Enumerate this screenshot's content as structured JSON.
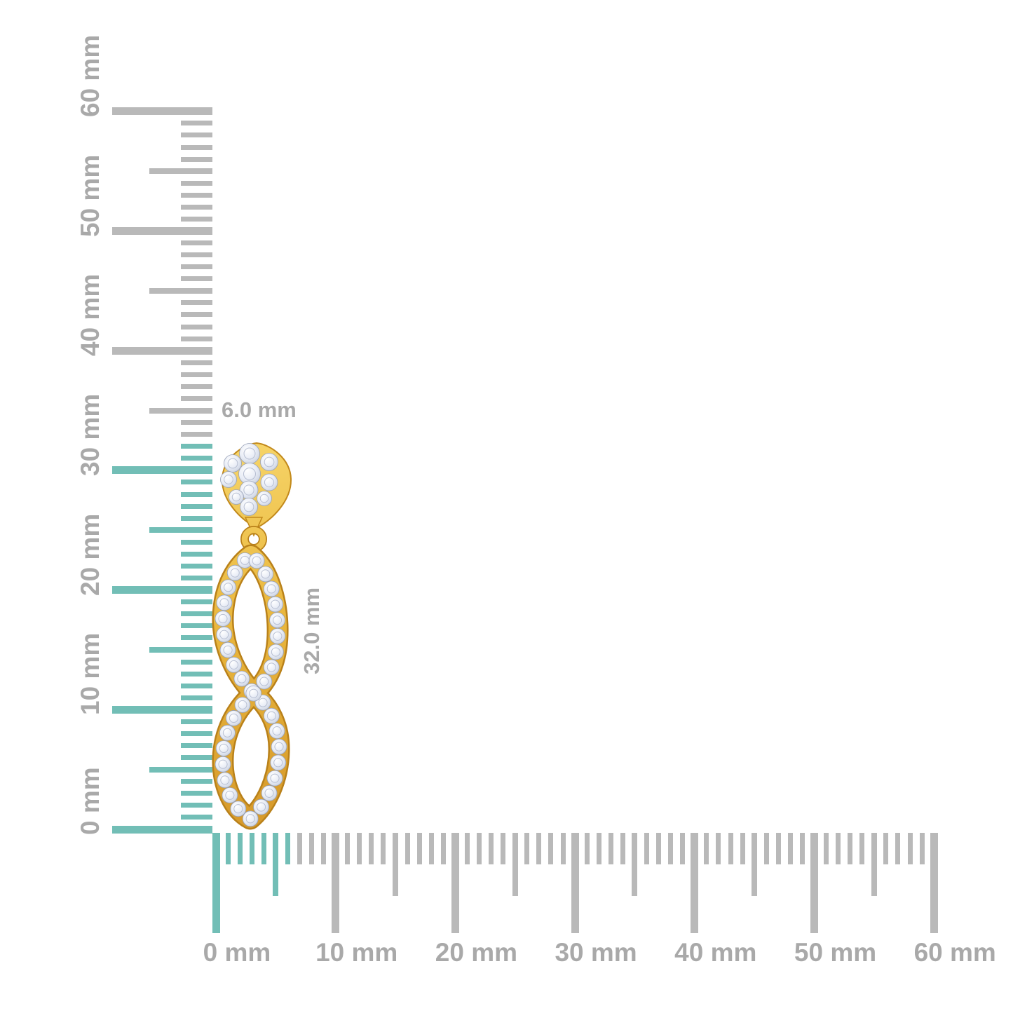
{
  "canvas": {
    "background": "#ffffff"
  },
  "rulers": {
    "unit": "mm",
    "vertical": {
      "min_mm": 0,
      "max_mm": 60,
      "tick_step_mm": 1,
      "medium_step_mm": 5,
      "major_step_mm": 10,
      "highlight_to_mm": 32,
      "labels": [
        {
          "mm": 0,
          "text": "0 mm"
        },
        {
          "mm": 10,
          "text": "10 mm"
        },
        {
          "mm": 20,
          "text": "20 mm"
        },
        {
          "mm": 30,
          "text": "30 mm"
        },
        {
          "mm": 40,
          "text": "40 mm"
        },
        {
          "mm": 50,
          "text": "50 mm"
        },
        {
          "mm": 60,
          "text": "60 mm"
        }
      ]
    },
    "horizontal": {
      "min_mm": 0,
      "max_mm": 60,
      "tick_step_mm": 1,
      "medium_step_mm": 5,
      "major_step_mm": 10,
      "highlight_to_mm": 6,
      "labels": [
        {
          "mm": 0,
          "text": "0 mm"
        },
        {
          "mm": 10,
          "text": "10 mm"
        },
        {
          "mm": 20,
          "text": "20 mm"
        },
        {
          "mm": 30,
          "text": "30 mm"
        },
        {
          "mm": 40,
          "text": "40 mm"
        },
        {
          "mm": 50,
          "text": "50 mm"
        },
        {
          "mm": 60,
          "text": "60 mm"
        }
      ]
    }
  },
  "annotations": {
    "width_label": "6.0 mm",
    "height_label": "32.0 mm"
  },
  "colors": {
    "background": "#ffffff",
    "tick_gray": "#b9b9b9",
    "tick_teal": "#72beb6",
    "ruler_label": "#a9a9a9",
    "annotation": "#a9a9a9",
    "gold_light": "#f8d96f",
    "gold_mid": "#eab83f",
    "gold_deep": "#d49628",
    "gold_edge": "#b9811a",
    "diamond_hi": "#ffffff",
    "diamond_mid": "#e9edf6",
    "diamond_lo": "#aab4c9",
    "diamond_facet": "#b7bfd2"
  }
}
